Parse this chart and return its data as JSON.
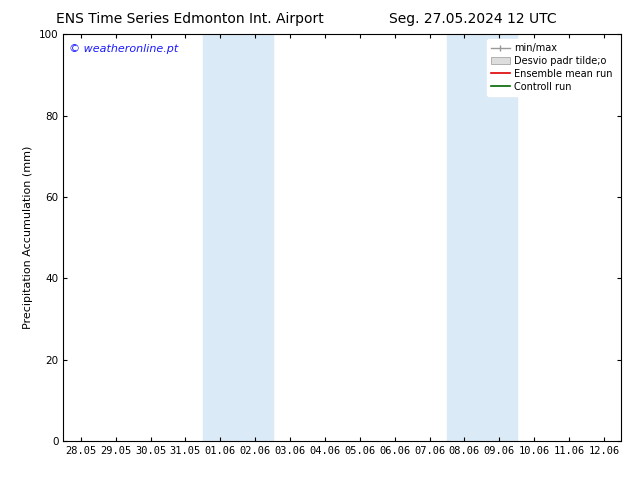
{
  "title_left": "ENS Time Series Edmonton Int. Airport",
  "title_right": "Seg. 27.05.2024 12 UTC",
  "ylabel": "Precipitation Accumulation (mm)",
  "watermark": "© weatheronline.pt",
  "ylim": [
    0,
    100
  ],
  "yticks": [
    0,
    20,
    40,
    60,
    80,
    100
  ],
  "xtick_labels": [
    "28.05",
    "29.05",
    "30.05",
    "31.05",
    "01.06",
    "02.06",
    "03.06",
    "04.06",
    "05.06",
    "06.06",
    "07.06",
    "08.06",
    "09.06",
    "10.06",
    "11.06",
    "12.06"
  ],
  "shaded_bands": [
    4,
    5,
    11,
    12
  ],
  "shaded_color": "#daeaf6",
  "background_color": "#ffffff",
  "legend_entries": [
    "min/max",
    "Desvio padr tilde;o",
    "Ensemble mean run",
    "Controll run"
  ],
  "title_fontsize": 10,
  "label_fontsize": 8,
  "tick_fontsize": 7.5,
  "watermark_color": "#1a1aff"
}
